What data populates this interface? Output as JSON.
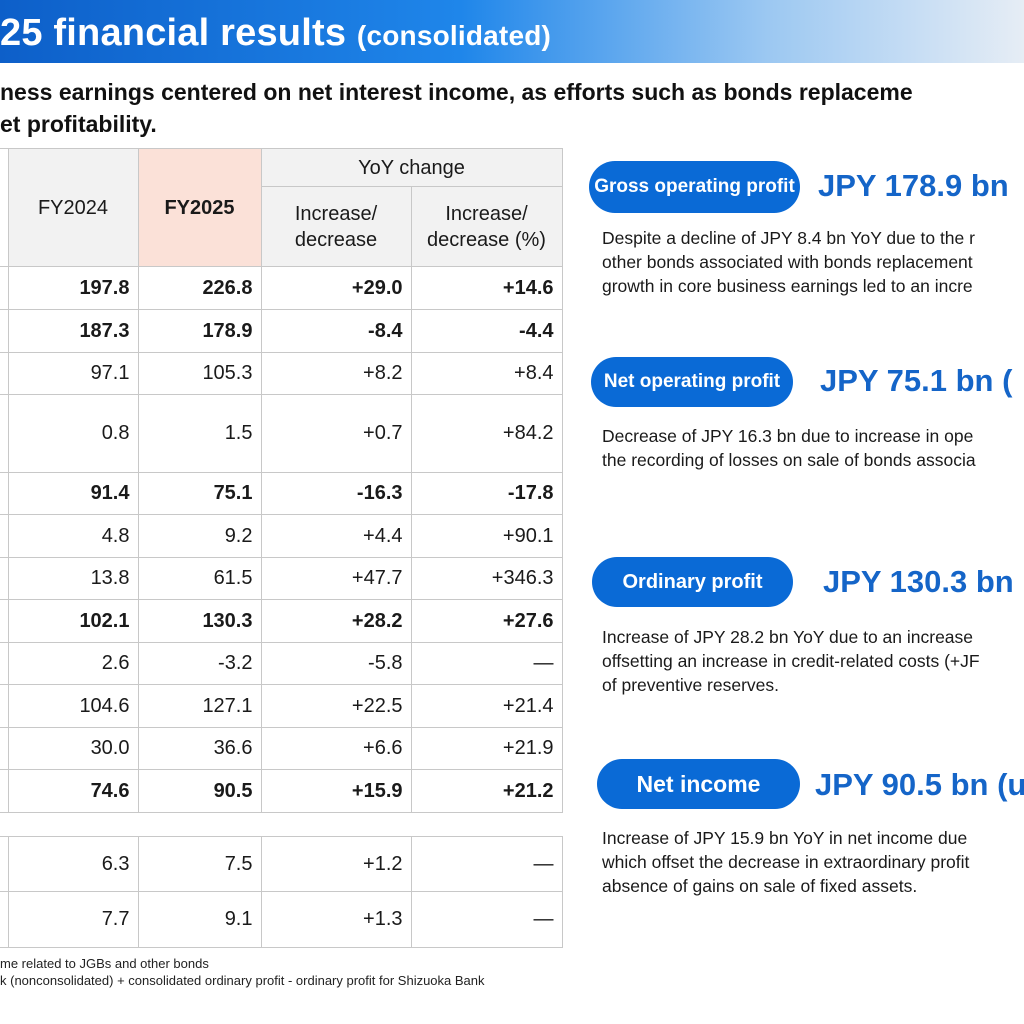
{
  "title": {
    "main": "25 financial results",
    "sub": "(consolidated)"
  },
  "subtitle": {
    "line1": "ness earnings centered on net interest income, as efforts such as bonds replaceme",
    "line2": "et profitability."
  },
  "table": {
    "headers": {
      "fy2024": "FY2024",
      "fy2025": "FY2025",
      "yoy": "YoY change",
      "inc_line1": "Increase/",
      "inc_line2": "decrease",
      "pct_line1": "Increase/",
      "pct_line2": "decrease (%)"
    },
    "rows": [
      {
        "fy2024": "197.8",
        "fy2025": "226.8",
        "change": "+29.0",
        "pct": "+14.6"
      },
      {
        "fy2024": "187.3",
        "fy2025": "178.9",
        "change": "-8.4",
        "pct": "-4.4"
      },
      {
        "fy2024": "97.1",
        "fy2025": "105.3",
        "change": "+8.2",
        "pct": "+8.4"
      },
      {
        "fy2024": "0.8",
        "fy2025": "1.5",
        "change": "+0.7",
        "pct": "+84.2"
      },
      {
        "fy2024": "91.4",
        "fy2025": "75.1",
        "change": "-16.3",
        "pct": "-17.8"
      },
      {
        "fy2024": "4.8",
        "fy2025": "9.2",
        "change": "+4.4",
        "pct": "+90.1"
      },
      {
        "fy2024": "13.8",
        "fy2025": "61.5",
        "change": "+47.7",
        "pct": "+346.3"
      },
      {
        "fy2024": "102.1",
        "fy2025": "130.3",
        "change": "+28.2",
        "pct": "+27.6"
      },
      {
        "fy2024": "2.6",
        "fy2025": "-3.2",
        "change": "-5.8",
        "pct": "―"
      },
      {
        "fy2024": "104.6",
        "fy2025": "127.1",
        "change": "+22.5",
        "pct": "+21.4"
      },
      {
        "fy2024": "30.0",
        "fy2025": "36.6",
        "change": "+6.6",
        "pct": "+21.9"
      },
      {
        "fy2024": "74.6",
        "fy2025": "90.5",
        "change": "+15.9",
        "pct": "+21.2"
      }
    ],
    "extra_rows": [
      {
        "fy2024": "6.3",
        "fy2025": "7.5",
        "change": "+1.2",
        "pct": "―"
      },
      {
        "fy2024": "7.7",
        "fy2025": "9.1",
        "change": "+1.3",
        "pct": "―"
      }
    ]
  },
  "footnotes": {
    "line1": "me related to JGBs and other bonds",
    "line2": "k (nonconsolidated) + consolidated ordinary profit - ordinary profit for Shizuoka Bank"
  },
  "highlights": [
    {
      "label": "Gross operating profit",
      "value": "JPY 178.9 bn",
      "lines": [
        "Despite a decline of JPY 8.4 bn YoY due to the r",
        "other bonds associated with bonds replacement",
        "growth in core business earnings led to an incre"
      ]
    },
    {
      "label": "Net operating profit",
      "value": "JPY 75.1 bn (",
      "lines": [
        "Decrease of JPY 16.3 bn due to increase in ope",
        "the recording of losses on sale of bonds associa"
      ]
    },
    {
      "label": "Ordinary profit",
      "value": "JPY 130.3 bn",
      "lines": [
        "Increase of JPY 28.2 bn YoY due to an increase",
        "offsetting an increase in credit-related costs (+JF",
        "of preventive reserves."
      ]
    },
    {
      "label": "Net income",
      "value": "JPY 90.5 bn (u",
      "lines": [
        "Increase of JPY 15.9 bn YoY in net income due",
        "which offset the decrease in extraordinary profit",
        "absence of gains on sale of fixed assets."
      ]
    }
  ],
  "colors": {
    "accent": "#0a6ad6",
    "value_text": "#1565c8",
    "fy2025_header": "#fbe1d8"
  }
}
